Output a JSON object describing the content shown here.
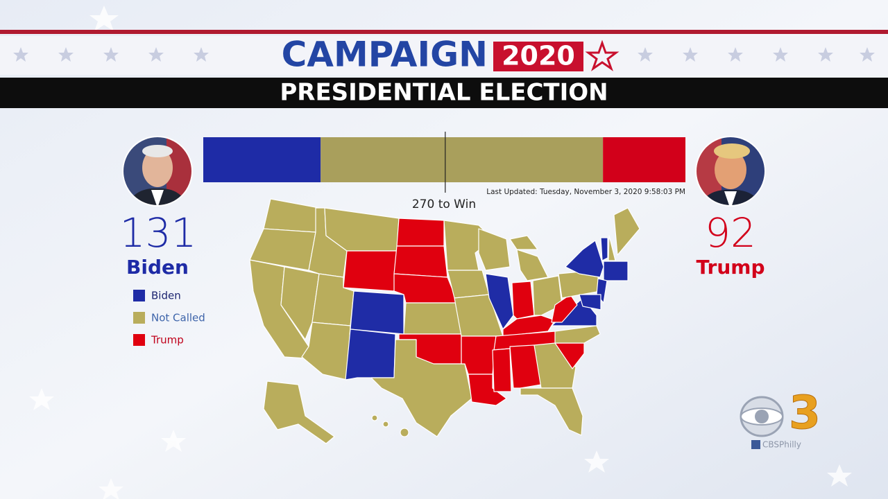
{
  "header": {
    "title": "CAMPAIGN",
    "year": "2020",
    "subtitle": "PRESIDENTIAL ELECTION"
  },
  "candidates": [
    {
      "name": "Biden",
      "votes": 131,
      "color": "#1e2ba6"
    },
    {
      "name": "Trump",
      "votes": 92,
      "color": "#d2001a"
    }
  ],
  "tally_bar": {
    "xlim": [
      0,
      538
    ],
    "not_called": 315,
    "not_called_color": "#a99f5c",
    "threshold": 270,
    "threshold_label": "270 to Win",
    "last_updated": "Last Updated: Tuesday, November 3, 2020 9:58:03 PM"
  },
  "legend": [
    {
      "label": "Biden",
      "color": "#1f2ca6"
    },
    {
      "label": "Not Called",
      "color": "#b9ad5c"
    },
    {
      "label": "Trump",
      "color": "#e0000f"
    }
  ],
  "logo": {
    "channel": "3",
    "handle": "CBSPhilly"
  }
}
